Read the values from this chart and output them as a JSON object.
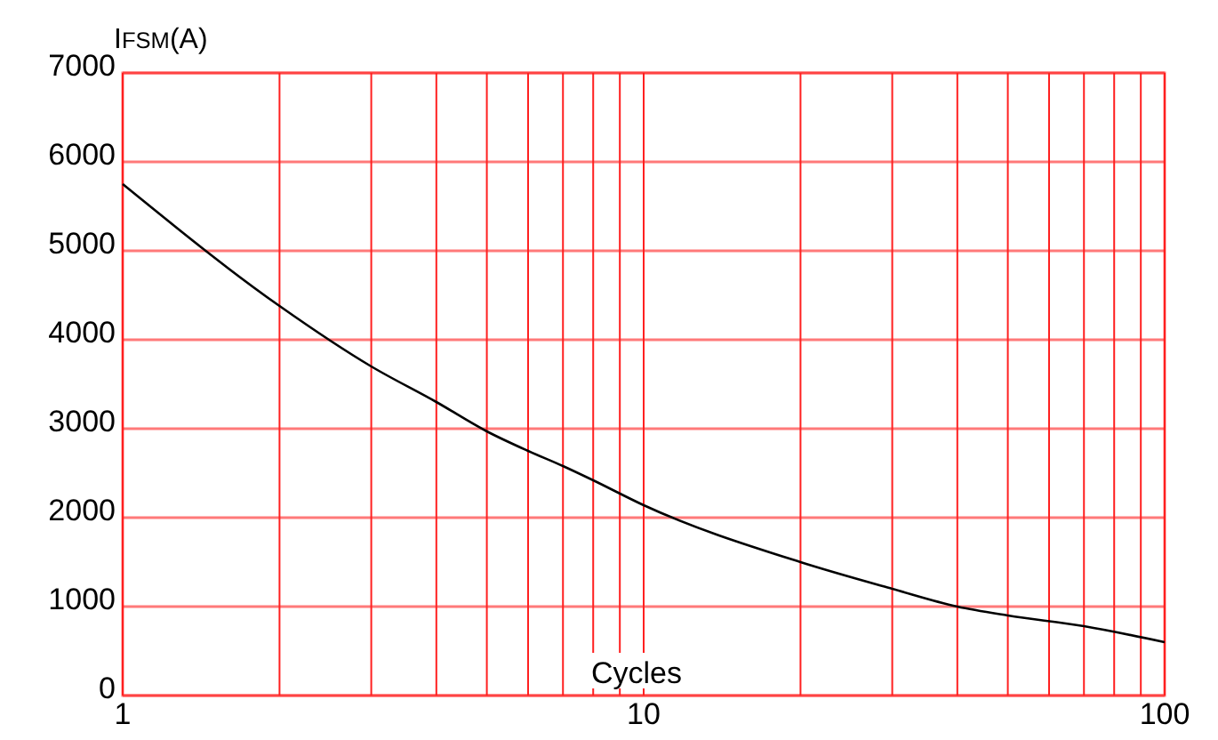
{
  "chart_data": {
    "type": "line",
    "ylabel": "I$_{FSM}$(A)",
    "xlabel": "Cycles",
    "log": "x",
    "grid": true,
    "marker": "none",
    "line_style": "solid",
    "xlim": [
      1,
      100
    ],
    "ylim": [
      0,
      7000
    ],
    "xticks": [
      1,
      {
        "value": 2,
        "label": null
      },
      {
        "value": 3,
        "label": null
      },
      {
        "value": 4,
        "label": null
      },
      {
        "value": 5,
        "label": null
      },
      {
        "value": 6,
        "label": null
      },
      {
        "value": 7,
        "label": null
      },
      {
        "value": 8,
        "label": null
      },
      {
        "value": 9,
        "label": null
      },
      10,
      {
        "value": 20,
        "label": null
      },
      {
        "value": 30,
        "label": null
      },
      {
        "value": 40,
        "label": null
      },
      {
        "value": 50,
        "label": null
      },
      {
        "value": 60,
        "label": null
      },
      {
        "value": 70,
        "label": null
      },
      {
        "value": 80,
        "label": null
      },
      {
        "value": 90,
        "label": null
      },
      100
    ],
    "yticks": [
      0,
      1000,
      2000,
      3000,
      4000,
      5000,
      6000,
      7000
    ],
    "x": [
      1,
      2,
      3,
      4,
      5,
      6,
      7,
      8,
      10,
      20,
      30,
      40,
      50,
      70,
      100
    ],
    "series": [
      {
        "color": "#000000",
        "values": [
          5750,
          4380,
          3700,
          3300,
          2970,
          2750,
          2580,
          2420,
          2140,
          1500,
          1200,
          1000,
          900,
          780,
          600
        ]
      }
    ]
  }
}
